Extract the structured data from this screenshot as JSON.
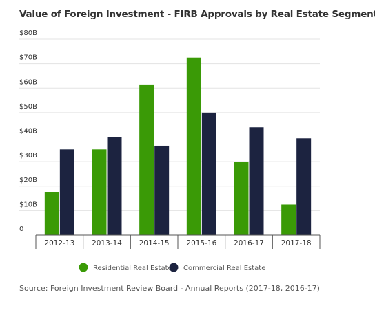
{
  "chart_data": {
    "type": "bar",
    "title": "Value of Foreign Investment - FIRB Approvals by Real Estate Segment",
    "categories": [
      "2012-13",
      "2013-14",
      "2014-15",
      "2015-16",
      "2016-17",
      "2017-18"
    ],
    "series": [
      {
        "name": "Residential Real Estate",
        "color": "#3a9a06",
        "values": [
          17.5,
          35,
          61.5,
          72.5,
          30,
          12.5
        ]
      },
      {
        "name": "Commercial Real Estate",
        "color": "#1c2340",
        "values": [
          35,
          40,
          36.5,
          50,
          44,
          39.5
        ]
      }
    ],
    "y_ticks": [
      {
        "value": 0,
        "label": "0"
      },
      {
        "value": 10,
        "label": "$10B"
      },
      {
        "value": 20,
        "label": "$20B"
      },
      {
        "value": 30,
        "label": "$30B"
      },
      {
        "value": 40,
        "label": "$40B"
      },
      {
        "value": 50,
        "label": "$50B"
      },
      {
        "value": 60,
        "label": "$60B"
      },
      {
        "value": 70,
        "label": "$70B"
      },
      {
        "value": 80,
        "label": "$80B"
      }
    ],
    "ylim": [
      0,
      80
    ],
    "grid": true,
    "legend_position": "bottom"
  },
  "source": "Source: Foreign Investment Review Board - Annual Reports (2017-18, 2016-17)"
}
